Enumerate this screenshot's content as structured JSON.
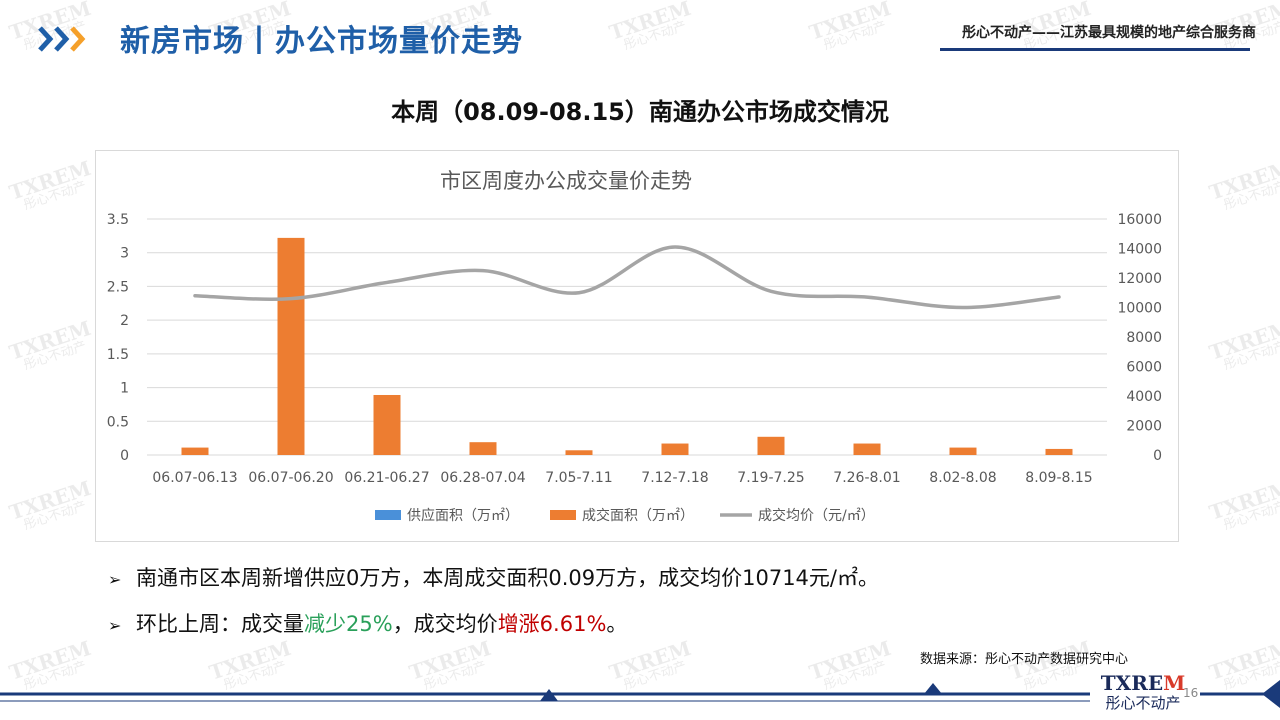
{
  "header": {
    "title": "新房市场丨办公市场量价走势",
    "right_text": "彤心不动产——江苏最具规模的地产综合服务商"
  },
  "section_title": "本周（08.09-08.15）南通办公市场成交情况",
  "chart_data": {
    "type": "bar",
    "title": "市区周度办公成交量价走势",
    "categories": [
      "06.07-06.13",
      "06.07-06.20",
      "06.21-06.27",
      "06.28-07.04",
      "7.05-7.11",
      "7.12-7.18",
      "7.19-7.25",
      "7.26-8.01",
      "8.02-8.08",
      "8.09-8.15"
    ],
    "series": [
      {
        "name": "供应面积（万㎡）",
        "type": "bar",
        "axis": "left",
        "color": "#4a90d9",
        "values": [
          0,
          0,
          0,
          0,
          0,
          0,
          0,
          0,
          0,
          0
        ]
      },
      {
        "name": "成交面积（万㎡）",
        "type": "bar",
        "axis": "left",
        "color": "#ed7d31",
        "values": [
          0.11,
          3.22,
          0.89,
          0.19,
          0.07,
          0.17,
          0.27,
          0.17,
          0.11,
          0.09
        ]
      },
      {
        "name": "成交均价（元/㎡）",
        "type": "line",
        "axis": "right",
        "color": "#a5a5a5",
        "values": [
          10800,
          10600,
          11700,
          12500,
          11000,
          14100,
          11100,
          10700,
          10000,
          10714
        ]
      }
    ],
    "y_left": {
      "ylim": [
        0,
        3.5
      ],
      "ticks": [
        "0",
        "0.5",
        "1",
        "1.5",
        "2",
        "2.5",
        "3",
        "3.5"
      ]
    },
    "y_right": {
      "ylim": [
        0,
        16000
      ],
      "ticks": [
        "0",
        "2000",
        "4000",
        "6000",
        "8000",
        "10000",
        "12000",
        "14000",
        "16000"
      ]
    },
    "legend_position": "bottom",
    "grid": true
  },
  "bullets": {
    "b1": {
      "text": "南通市区本周新增供应0万方，本周成交面积0.09万方，成交均价10714元/㎡。"
    },
    "b2": {
      "prefix": "环比上周：成交量",
      "volume_change": "减少25%",
      "middle": "，成交均价",
      "price_change": "增涨6.61%",
      "suffix": "。"
    }
  },
  "source": "数据来源：彤心不动产数据研究中心",
  "footer": {
    "logo_text_a": "TXRE",
    "logo_text_b": "M",
    "logo_cn": "彤心不动产",
    "page_number": "16"
  },
  "watermark": {
    "line1": "TXREM",
    "line2": "彤心不动产"
  },
  "colors": {
    "brand_blue": "#1f5fa8",
    "chevron_orange": "#f5a02a",
    "footer_navy": "#1a3a7a"
  }
}
